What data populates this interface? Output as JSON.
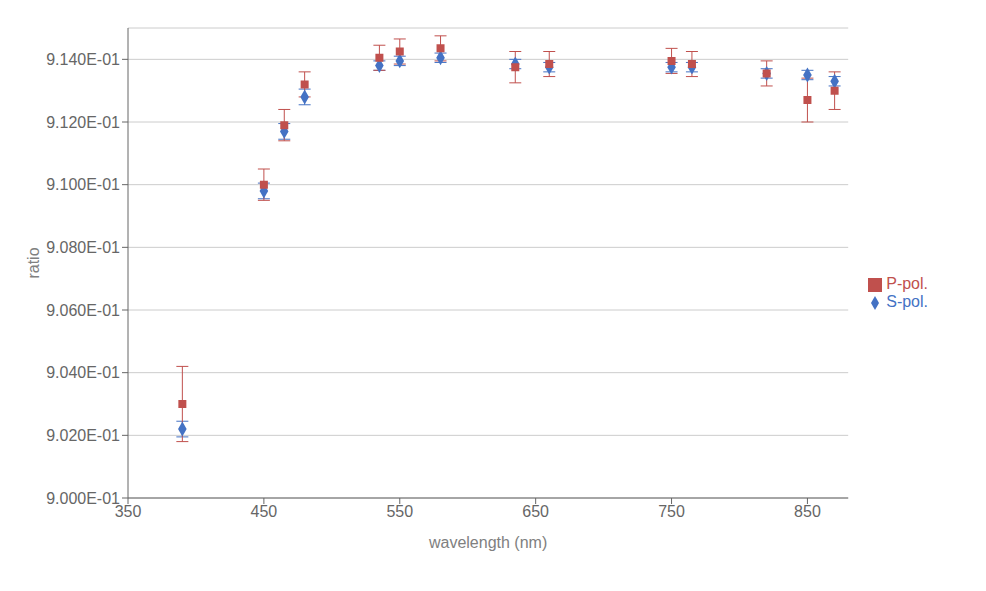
{
  "chart_data": {
    "type": "scatter",
    "x_label": "wavelength (nm)",
    "y_label": "ratio",
    "x": [
      390,
      450,
      465,
      480,
      535,
      550,
      580,
      635,
      660,
      750,
      765,
      820,
      850,
      870
    ],
    "series": [
      {
        "name": "S-pol.",
        "color": "#4472C4",
        "marker": "diamond",
        "values": [
          0.9022,
          0.9098,
          0.9117,
          0.9128,
          0.9138,
          0.91395,
          0.91405,
          0.91385,
          0.91375,
          0.91375,
          0.91375,
          0.91355,
          0.9135,
          0.9133
        ],
        "errors": [
          0.00025,
          0.00025,
          0.00025,
          0.00025,
          0.00015,
          0.00015,
          0.00015,
          0.00015,
          0.00015,
          0.00015,
          0.00015,
          0.00015,
          0.00015,
          0.00015
        ]
      },
      {
        "name": "P-pol.",
        "color": "#C0504D",
        "marker": "square",
        "values": [
          0.903,
          0.91,
          0.9119,
          0.9132,
          0.91405,
          0.91425,
          0.91435,
          0.91375,
          0.91385,
          0.91395,
          0.91385,
          0.91355,
          0.9127,
          0.913
        ],
        "errors": [
          0.0012,
          0.0005,
          0.0005,
          0.0004,
          0.0004,
          0.0004,
          0.0004,
          0.0005,
          0.0004,
          0.0004,
          0.0004,
          0.0004,
          0.0007,
          0.0006
        ]
      }
    ],
    "xlim": [
      350,
      880
    ],
    "xticks": [
      350,
      450,
      550,
      650,
      750,
      850
    ],
    "ylim": [
      0.9,
      0.915
    ],
    "yticks": [
      {
        "value": 0.9,
        "label": "9.000E-01"
      },
      {
        "value": 0.902,
        "label": "9.020E-01"
      },
      {
        "value": 0.904,
        "label": "9.040E-01"
      },
      {
        "value": 0.906,
        "label": "9.060E-01"
      },
      {
        "value": 0.908,
        "label": "9.080E-01"
      },
      {
        "value": 0.91,
        "label": "9.100E-01"
      },
      {
        "value": 0.912,
        "label": "9.120E-01"
      },
      {
        "value": 0.914,
        "label": "9.140E-01"
      }
    ],
    "grid": "y",
    "legend": "right"
  }
}
